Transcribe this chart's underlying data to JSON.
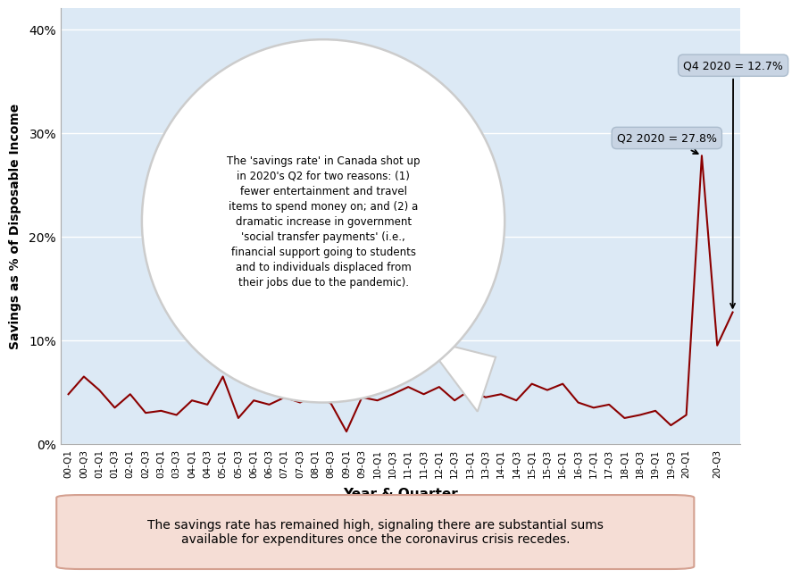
{
  "labels": [
    "00-Q1",
    "00-Q3",
    "01-Q1",
    "01-Q3",
    "02-Q1",
    "02-Q3",
    "03-Q1",
    "03-Q3",
    "04-Q1",
    "04-Q3",
    "05-Q1",
    "05-Q3",
    "06-Q1",
    "06-Q3",
    "07-Q1",
    "07-Q3",
    "08-Q1",
    "08-Q3",
    "09-Q1",
    "09-Q3",
    "10-Q1",
    "10-Q3",
    "11-Q1",
    "11-Q3",
    "12-Q1",
    "12-Q3",
    "13-Q1",
    "13-Q3",
    "14-Q1",
    "14-Q3",
    "15-Q1",
    "15-Q3",
    "16-Q1",
    "16-Q3",
    "17-Q1",
    "17-Q3",
    "18-Q1",
    "18-Q3",
    "19-Q1",
    "19-Q3",
    "20-Q1",
    "20-Q2",
    "20-Q3",
    "20-Q4"
  ],
  "values": [
    4.8,
    6.5,
    5.2,
    3.5,
    4.8,
    3.0,
    3.2,
    2.8,
    4.2,
    3.8,
    6.5,
    2.5,
    4.2,
    3.8,
    4.5,
    4.0,
    4.8,
    3.9,
    1.2,
    4.5,
    4.2,
    4.8,
    5.5,
    4.8,
    5.5,
    4.2,
    5.2,
    4.5,
    4.8,
    4.2,
    5.8,
    5.2,
    5.8,
    4.0,
    3.5,
    3.8,
    2.5,
    2.8,
    3.2,
    1.8,
    2.8,
    27.8,
    9.5,
    12.7
  ],
  "display_tick_labels": [
    "00-Q1",
    "00-Q3",
    "01-Q1",
    "01-Q3",
    "02-Q1",
    "02-Q3",
    "03-Q1",
    "03-Q3",
    "04-Q1",
    "04-Q3",
    "05-Q1",
    "05-Q3",
    "06-Q1",
    "06-Q3",
    "07-Q1",
    "07-Q3",
    "08-Q1",
    "08-Q3",
    "09-Q1",
    "09-Q3",
    "10-Q1",
    "10-Q3",
    "11-Q1",
    "11-Q3",
    "12-Q1",
    "12-Q3",
    "13-Q1",
    "13-Q3",
    "14-Q1",
    "14-Q3",
    "15-Q1",
    "15-Q3",
    "16-Q1",
    "16-Q3",
    "17-Q1",
    "17-Q3",
    "18-Q1",
    "18-Q3",
    "19-Q1",
    "19-Q3",
    "20-Q1",
    "",
    "20-Q3",
    ""
  ],
  "line_color": "#8B0000",
  "bg_color": "#dce9f5",
  "ylabel": "Savings as % of Disposable Income",
  "xlabel": "Year & Quarter",
  "ylim_max": 0.42,
  "yticks": [
    0.0,
    0.1,
    0.2,
    0.3,
    0.4
  ],
  "ytick_labels": [
    "0%",
    "10%",
    "20%",
    "30%",
    "40%"
  ],
  "annotation_q2_text": "Q2 2020 = 27.8%",
  "annotation_q4_text": "Q4 2020 = 12.7%",
  "q2_idx": 41,
  "q4_idx": 43,
  "q2_val": 0.278,
  "q4_val": 0.127,
  "bubble_text": "The 'savings rate' in Canada shot up\nin 2020's Q2 for two reasons: (1)\nfewer entertainment and travel\nitems to spend money on; and (2) a\ndramatic increase in government\n'social transfer payments' (i.e.,\nfinancial support going to students\nand to individuals displaced from\ntheir jobs due to the pandemic).",
  "bottom_text": "The savings rate has remained high, signaling there are substantial sums\navailable for expenditures once the coronavirus crisis recedes.",
  "bottom_box_color": "#f5ddd5",
  "bottom_box_edge_color": "#d4a090",
  "annotation_box_color": "#c8d4e3",
  "annotation_box_edge": "#aabbcc"
}
